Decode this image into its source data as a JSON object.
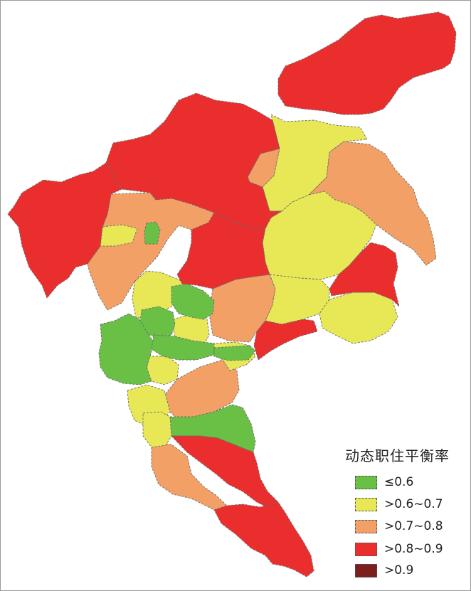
{
  "legend": {
    "title": "动态职住平衡率",
    "items": [
      {
        "label": "≤0.6",
        "color": "#6abf45"
      },
      {
        "label": ">0.6~0.7",
        "color": "#e8e857"
      },
      {
        "label": ">0.7~0.8",
        "color": "#f3a067"
      },
      {
        "label": ">0.8~0.9",
        "color": "#ea2e2e"
      },
      {
        "label": ">0.9",
        "color": "#7d1e1e"
      }
    ]
  }
}
